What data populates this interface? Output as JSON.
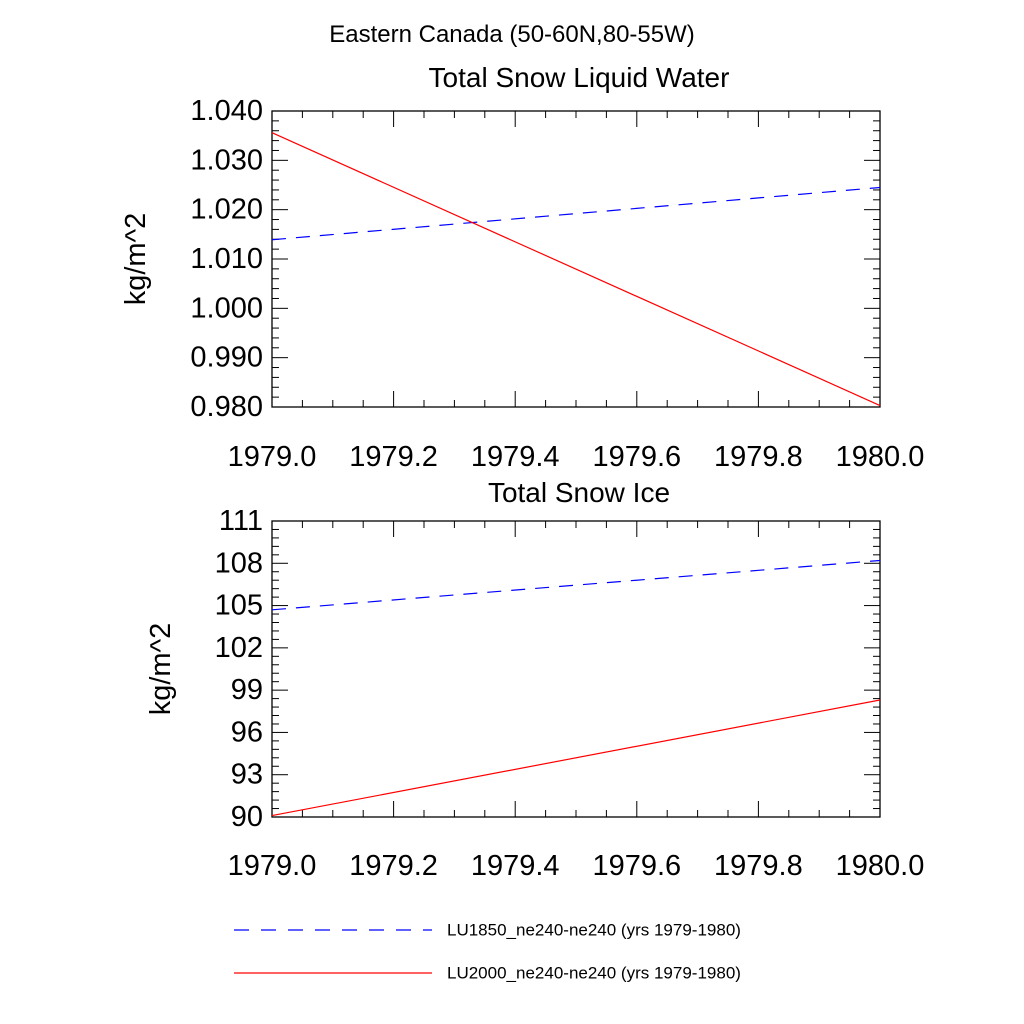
{
  "figure": {
    "title": "Eastern Canada (50-60N,80-55W)"
  },
  "chart_data": [
    {
      "type": "line",
      "title": "Total Snow Liquid Water",
      "xlabel": "",
      "ylabel": "kg/m^2",
      "xlim": [
        1979.0,
        1980.0
      ],
      "ylim": [
        0.98,
        1.04
      ],
      "x_ticks": [
        "1979.0",
        "1979.2",
        "1979.4",
        "1979.6",
        "1979.8",
        "1980.0"
      ],
      "y_ticks": [
        "0.980",
        "0.990",
        "1.000",
        "1.010",
        "1.020",
        "1.030",
        "1.040"
      ],
      "grid": false,
      "series": [
        {
          "name": "LU1850_ne240-ne240 (yrs 1979-1980)",
          "color": "#0000ff",
          "dash": "dashed",
          "x": [
            1979.0,
            1980.0
          ],
          "y": [
            1.0139,
            1.0245
          ]
        },
        {
          "name": "LU2000_ne240-ne240 (yrs 1979-1980)",
          "color": "#ff0000",
          "dash": "solid",
          "x": [
            1979.0,
            1980.0
          ],
          "y": [
            1.0356,
            0.9803
          ]
        }
      ]
    },
    {
      "type": "line",
      "title": "Total Snow Ice",
      "xlabel": "",
      "ylabel": "kg/m^2",
      "xlim": [
        1979.0,
        1980.0
      ],
      "ylim": [
        90,
        111
      ],
      "x_ticks": [
        "1979.0",
        "1979.2",
        "1979.4",
        "1979.6",
        "1979.8",
        "1980.0"
      ],
      "y_ticks": [
        "90",
        "93",
        "96",
        "99",
        "102",
        "105",
        "108",
        "111"
      ],
      "grid": false,
      "series": [
        {
          "name": "LU1850_ne240-ne240 (yrs 1979-1980)",
          "color": "#0000ff",
          "dash": "dashed",
          "x": [
            1979.0,
            1980.0
          ],
          "y": [
            104.7,
            108.2
          ]
        },
        {
          "name": "LU2000_ne240-ne240 (yrs 1979-1980)",
          "color": "#ff0000",
          "dash": "solid",
          "x": [
            1979.0,
            1980.0
          ],
          "y": [
            90.1,
            98.3
          ]
        }
      ]
    }
  ],
  "legend": {
    "placement": "bottom",
    "items": [
      {
        "label": "LU1850_ne240-ne240 (yrs 1979-1980)",
        "color": "#0000ff",
        "dash": "dashed"
      },
      {
        "label": "LU2000_ne240-ne240 (yrs 1979-1980)",
        "color": "#ff0000",
        "dash": "solid"
      }
    ]
  }
}
